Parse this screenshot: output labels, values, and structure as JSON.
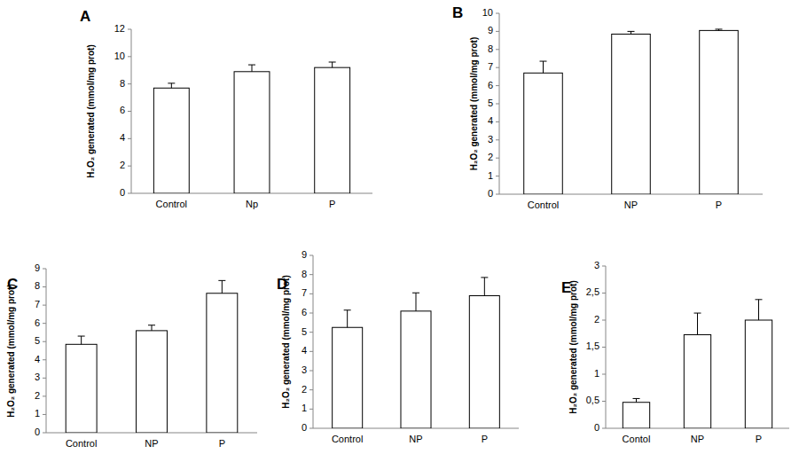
{
  "chart_data": [
    {
      "type": "bar",
      "title": "A",
      "ylabel": "H₂O₂ generated (mmol/mg prot)",
      "categories": [
        "Control",
        "Np",
        "P"
      ],
      "values": [
        7.7,
        8.9,
        9.2
      ],
      "errors": [
        0.35,
        0.5,
        0.4
      ],
      "color": "#ffffff",
      "ylim": [
        0,
        12
      ],
      "yticks": [
        0,
        2,
        4,
        6,
        8,
        10,
        12
      ],
      "grid": false
    },
    {
      "type": "bar",
      "title": "B",
      "ylabel": "H₂O₂ generated (mmol/mg prot)",
      "categories": [
        "Control",
        "NP",
        "P"
      ],
      "values": [
        6.7,
        8.85,
        9.05
      ],
      "errors": [
        0.65,
        0.15,
        0.07
      ],
      "color": "#ffffff",
      "ylim": [
        0,
        10
      ],
      "yticks": [
        0,
        1,
        2,
        3,
        4,
        5,
        6,
        7,
        8,
        9,
        10
      ],
      "grid": false
    },
    {
      "type": "bar",
      "title": "C",
      "ylabel": "H₂O₂ generated (mmol/mg prot)",
      "categories": [
        "Control",
        "NP",
        "P"
      ],
      "values": [
        4.85,
        5.6,
        7.65
      ],
      "errors": [
        0.45,
        0.3,
        0.7
      ],
      "color": "#ffffff",
      "ylim": [
        0,
        9
      ],
      "yticks": [
        0,
        1,
        2,
        3,
        4,
        5,
        6,
        7,
        8,
        9
      ],
      "grid": false
    },
    {
      "type": "bar",
      "title": "D",
      "ylabel": "H₂O₂ generated (mmol/mg prot)",
      "categories": [
        "Control",
        "NP",
        "P"
      ],
      "values": [
        5.25,
        6.1,
        6.9
      ],
      "errors": [
        0.9,
        0.95,
        0.95
      ],
      "color": "#ffffff",
      "ylim": [
        0,
        9
      ],
      "yticks": [
        0,
        1,
        2,
        3,
        4,
        5,
        6,
        7,
        8,
        9
      ],
      "grid": false
    },
    {
      "type": "bar",
      "title": "E",
      "ylabel": "H₂O₂ generated (mmol/mg prot)",
      "categories": [
        "Contol",
        "NP",
        "P"
      ],
      "values": [
        0.48,
        1.73,
        2.0
      ],
      "errors": [
        0.07,
        0.4,
        0.38
      ],
      "color": "#ffffff",
      "ylim": [
        0,
        3
      ],
      "yticks": [
        0,
        {
          "value": 0.5,
          "label": "0,5"
        },
        1,
        {
          "value": 1.5,
          "label": "1,5"
        },
        2,
        {
          "value": 2.5,
          "label": "2,5"
        },
        3
      ],
      "grid": false
    }
  ]
}
